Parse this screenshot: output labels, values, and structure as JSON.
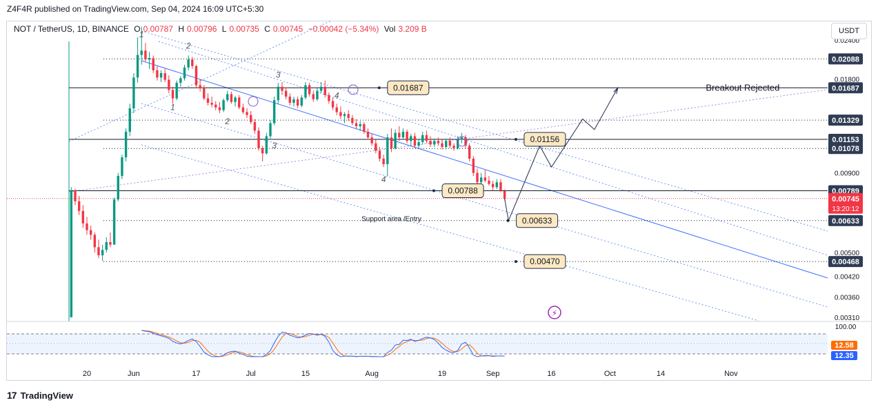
{
  "header": {
    "publisher_line": "Z4F4R published on TradingView.com, Sep 04, 2024 16:09 UTC+5:30"
  },
  "legend": {
    "symbol": "NOT / TetherUS, 1D, BINANCE",
    "open_label": "O",
    "open": "0.00787",
    "high_label": "H",
    "high": "0.00796",
    "low_label": "L",
    "low": "0.00735",
    "close_label": "C",
    "close": "0.00745",
    "change": "−0.00042 (−5.34%)",
    "vol_label": "Vol",
    "vol": "3.209 B"
  },
  "toolbar": {
    "currency": "USDT"
  },
  "footer": {
    "brand": "TradingView"
  },
  "colors": {
    "up": "#089981",
    "down": "#f23645",
    "channel": "#2962ff",
    "label_bg": "#fce8c3",
    "axis_label_bg": "#2f3c54",
    "stoch_k": "#2962ff",
    "stoch_d": "#ff6d00"
  },
  "chart_data": {
    "type": "candlestick",
    "symbol": "NOT / TetherUS",
    "interval": "1D",
    "exchange": "BINANCE",
    "y_scale": "log",
    "ylim": [
      0.0031,
      0.0245
    ],
    "y_ticks": [
      "0.02400",
      "0.02088",
      "0.01800",
      "0.01687",
      "0.01329",
      "0.01153",
      "0.01078",
      "0.00900",
      "0.00789",
      "0.00745",
      "0.00633",
      "0.00500",
      "0.00468",
      "0.00420",
      "0.00360",
      "0.00310"
    ],
    "x_ticks": [
      {
        "label": "20",
        "date": "2024-05-20"
      },
      {
        "label": "Jun",
        "date": "2024-06-01"
      },
      {
        "label": "17",
        "date": "2024-06-17"
      },
      {
        "label": "Jul",
        "date": "2024-07-01"
      },
      {
        "label": "15",
        "date": "2024-07-15"
      },
      {
        "label": "Aug",
        "date": "2024-08-01"
      },
      {
        "label": "19",
        "date": "2024-08-19"
      },
      {
        "label": "Sep",
        "date": "2024-09-01"
      },
      {
        "label": "16",
        "date": "2024-09-16"
      },
      {
        "label": "Oct",
        "date": "2024-10-01"
      },
      {
        "label": "14",
        "date": "2024-10-14"
      },
      {
        "label": "Nov",
        "date": "2024-11-01"
      }
    ],
    "candles": [
      [
        "2024-05-16",
        0.0031,
        0.0081,
        0.0031,
        0.0079
      ],
      [
        "2024-05-17",
        0.0079,
        0.008,
        0.0071,
        0.0073
      ],
      [
        "2024-05-18",
        0.0073,
        0.0076,
        0.0066,
        0.0068
      ],
      [
        "2024-05-19",
        0.0068,
        0.0071,
        0.006,
        0.0062
      ],
      [
        "2024-05-20",
        0.0062,
        0.0065,
        0.0057,
        0.0059
      ],
      [
        "2024-05-21",
        0.0059,
        0.0061,
        0.0055,
        0.0057
      ],
      [
        "2024-05-22",
        0.0057,
        0.0058,
        0.005,
        0.0052
      ],
      [
        "2024-05-23",
        0.0052,
        0.0055,
        0.0048,
        0.0049
      ],
      [
        "2024-05-24",
        0.0049,
        0.0053,
        0.0047,
        0.0051
      ],
      [
        "2024-05-25",
        0.0051,
        0.0056,
        0.005,
        0.0054
      ],
      [
        "2024-05-26",
        0.0054,
        0.0058,
        0.0052,
        0.0053
      ],
      [
        "2024-05-27",
        0.0053,
        0.0075,
        0.0053,
        0.0074
      ],
      [
        "2024-05-28",
        0.0074,
        0.009,
        0.0073,
        0.0088
      ],
      [
        "2024-05-29",
        0.0088,
        0.0103,
        0.0086,
        0.0101
      ],
      [
        "2024-05-30",
        0.0101,
        0.0125,
        0.0098,
        0.0122
      ],
      [
        "2024-05-31",
        0.0122,
        0.015,
        0.0118,
        0.0145
      ],
      [
        "2024-06-01",
        0.0145,
        0.0188,
        0.014,
        0.0182
      ],
      [
        "2024-06-02",
        0.0182,
        0.0245,
        0.0175,
        0.0215
      ],
      [
        "2024-06-03",
        0.0215,
        0.0265,
        0.02,
        0.0222
      ],
      [
        "2024-06-04",
        0.0222,
        0.0235,
        0.0205,
        0.0208
      ],
      [
        "2024-06-05",
        0.0208,
        0.022,
        0.0194,
        0.021
      ],
      [
        "2024-06-06",
        0.021,
        0.0214,
        0.0188,
        0.0192
      ],
      [
        "2024-06-07",
        0.0192,
        0.0198,
        0.0178,
        0.0182
      ],
      [
        "2024-06-08",
        0.0182,
        0.0192,
        0.0176,
        0.0188
      ],
      [
        "2024-06-09",
        0.0188,
        0.0194,
        0.0176,
        0.0179
      ],
      [
        "2024-06-10",
        0.0179,
        0.0185,
        0.0162,
        0.0166
      ],
      [
        "2024-06-11",
        0.0166,
        0.017,
        0.015,
        0.0156
      ],
      [
        "2024-06-12",
        0.0156,
        0.0178,
        0.0154,
        0.0175
      ],
      [
        "2024-06-13",
        0.0175,
        0.0184,
        0.017,
        0.0181
      ],
      [
        "2024-06-14",
        0.0181,
        0.02,
        0.0178,
        0.0196
      ],
      [
        "2024-06-15",
        0.0196,
        0.0214,
        0.0192,
        0.0208
      ],
      [
        "2024-06-16",
        0.0208,
        0.0212,
        0.0194,
        0.0198
      ],
      [
        "2024-06-17",
        0.0198,
        0.02,
        0.0168,
        0.0172
      ],
      [
        "2024-06-18",
        0.0172,
        0.018,
        0.0164,
        0.0168
      ],
      [
        "2024-06-19",
        0.0168,
        0.0172,
        0.0154,
        0.0156
      ],
      [
        "2024-06-20",
        0.0156,
        0.0162,
        0.0148,
        0.0151
      ],
      [
        "2024-06-21",
        0.0151,
        0.0158,
        0.0146,
        0.0149
      ],
      [
        "2024-06-22",
        0.0149,
        0.0153,
        0.0143,
        0.0146
      ],
      [
        "2024-06-23",
        0.0146,
        0.0152,
        0.014,
        0.0143
      ],
      [
        "2024-06-24",
        0.0143,
        0.0156,
        0.0141,
        0.0154
      ],
      [
        "2024-06-25",
        0.0154,
        0.0165,
        0.0152,
        0.0161
      ],
      [
        "2024-06-26",
        0.0161,
        0.0164,
        0.015,
        0.0152
      ],
      [
        "2024-06-27",
        0.0152,
        0.0159,
        0.0147,
        0.0157
      ],
      [
        "2024-06-28",
        0.0157,
        0.016,
        0.0144,
        0.0146
      ],
      [
        "2024-06-29",
        0.0146,
        0.015,
        0.0139,
        0.0141
      ],
      [
        "2024-06-30",
        0.0141,
        0.0145,
        0.0135,
        0.0138
      ],
      [
        "2024-07-01",
        0.0138,
        0.0142,
        0.0129,
        0.0131
      ],
      [
        "2024-07-02",
        0.0131,
        0.0134,
        0.012,
        0.0123
      ],
      [
        "2024-07-03",
        0.0123,
        0.0126,
        0.0106,
        0.0108
      ],
      [
        "2024-07-04",
        0.0108,
        0.011,
        0.0098,
        0.0104
      ],
      [
        "2024-07-05",
        0.0104,
        0.0121,
        0.0103,
        0.0118
      ],
      [
        "2024-07-06",
        0.0118,
        0.0133,
        0.0116,
        0.013
      ],
      [
        "2024-07-07",
        0.013,
        0.0158,
        0.0128,
        0.0154
      ],
      [
        "2024-07-08",
        0.0154,
        0.0175,
        0.015,
        0.017
      ],
      [
        "2024-07-09",
        0.017,
        0.0176,
        0.016,
        0.0165
      ],
      [
        "2024-07-10",
        0.0165,
        0.0169,
        0.0155,
        0.0158
      ],
      [
        "2024-07-11",
        0.0158,
        0.0162,
        0.0148,
        0.0151
      ],
      [
        "2024-07-12",
        0.0151,
        0.0158,
        0.0147,
        0.0155
      ],
      [
        "2024-07-13",
        0.0155,
        0.0158,
        0.0145,
        0.0148
      ],
      [
        "2024-07-14",
        0.0148,
        0.016,
        0.0146,
        0.0157
      ],
      [
        "2024-07-15",
        0.0157,
        0.0176,
        0.0155,
        0.0172
      ],
      [
        "2024-07-16",
        0.0172,
        0.0175,
        0.0158,
        0.0161
      ],
      [
        "2024-07-17",
        0.0161,
        0.0164,
        0.0152,
        0.0155
      ],
      [
        "2024-07-18",
        0.0155,
        0.0168,
        0.0153,
        0.0165
      ],
      [
        "2024-07-19",
        0.0165,
        0.0176,
        0.0162,
        0.017
      ],
      [
        "2024-07-20",
        0.017,
        0.0178,
        0.0157,
        0.016
      ],
      [
        "2024-07-21",
        0.016,
        0.0163,
        0.015,
        0.0153
      ],
      [
        "2024-07-22",
        0.0153,
        0.0157,
        0.0143,
        0.0146
      ],
      [
        "2024-07-23",
        0.0146,
        0.015,
        0.0138,
        0.0141
      ],
      [
        "2024-07-24",
        0.0141,
        0.0147,
        0.0134,
        0.0137
      ],
      [
        "2024-07-25",
        0.0137,
        0.0141,
        0.013,
        0.0139
      ],
      [
        "2024-07-26",
        0.0139,
        0.0143,
        0.0132,
        0.0135
      ],
      [
        "2024-07-27",
        0.0135,
        0.0138,
        0.0128,
        0.013
      ],
      [
        "2024-07-28",
        0.013,
        0.0134,
        0.0125,
        0.0127
      ],
      [
        "2024-07-29",
        0.0127,
        0.0132,
        0.0123,
        0.0129
      ],
      [
        "2024-07-30",
        0.0129,
        0.0131,
        0.012,
        0.0122
      ],
      [
        "2024-07-31",
        0.0122,
        0.0125,
        0.0115,
        0.0117
      ],
      [
        "2024-08-01",
        0.0117,
        0.012,
        0.011,
        0.0112
      ],
      [
        "2024-08-02",
        0.0112,
        0.0115,
        0.0104,
        0.0106
      ],
      [
        "2024-08-03",
        0.0106,
        0.0109,
        0.0098,
        0.01
      ],
      [
        "2024-08-04",
        0.01,
        0.0103,
        0.0094,
        0.0096
      ],
      [
        "2024-08-05",
        0.0096,
        0.012,
        0.0088,
        0.0117
      ],
      [
        "2024-08-06",
        0.0117,
        0.0125,
        0.0105,
        0.0108
      ],
      [
        "2024-08-07",
        0.0108,
        0.0124,
        0.0107,
        0.0121
      ],
      [
        "2024-08-08",
        0.0121,
        0.0127,
        0.0114,
        0.0117
      ],
      [
        "2024-08-09",
        0.0117,
        0.0125,
        0.0115,
        0.0122
      ],
      [
        "2024-08-10",
        0.0122,
        0.0124,
        0.0112,
        0.0114
      ],
      [
        "2024-08-11",
        0.0114,
        0.012,
        0.011,
        0.0118
      ],
      [
        "2024-08-12",
        0.0118,
        0.0121,
        0.0108,
        0.011
      ],
      [
        "2024-08-13",
        0.011,
        0.0115,
        0.0108,
        0.0113
      ],
      [
        "2024-08-14",
        0.0113,
        0.0122,
        0.0111,
        0.0119
      ],
      [
        "2024-08-15",
        0.0119,
        0.0123,
        0.0112,
        0.0114
      ],
      [
        "2024-08-16",
        0.0114,
        0.0118,
        0.0109,
        0.0111
      ],
      [
        "2024-08-17",
        0.0111,
        0.0116,
        0.0109,
        0.0114
      ],
      [
        "2024-08-18",
        0.0114,
        0.0117,
        0.011,
        0.0112
      ],
      [
        "2024-08-19",
        0.0112,
        0.0115,
        0.0107,
        0.0109
      ],
      [
        "2024-08-20",
        0.0109,
        0.0116,
        0.0107,
        0.0114
      ],
      [
        "2024-08-21",
        0.0114,
        0.0117,
        0.0108,
        0.011
      ],
      [
        "2024-08-22",
        0.011,
        0.0112,
        0.0106,
        0.0108
      ],
      [
        "2024-08-23",
        0.0108,
        0.0118,
        0.0107,
        0.0115
      ],
      [
        "2024-08-24",
        0.0115,
        0.0121,
        0.0112,
        0.0117
      ],
      [
        "2024-08-25",
        0.0117,
        0.0119,
        0.0108,
        0.011
      ],
      [
        "2024-08-26",
        0.011,
        0.0112,
        0.0098,
        0.01
      ],
      [
        "2024-08-27",
        0.01,
        0.0102,
        0.0088,
        0.009
      ],
      [
        "2024-08-28",
        0.009,
        0.0093,
        0.0082,
        0.0084
      ],
      [
        "2024-08-29",
        0.0084,
        0.009,
        0.0082,
        0.0087
      ],
      [
        "2024-08-30",
        0.0087,
        0.0092,
        0.0084,
        0.0085
      ],
      [
        "2024-08-31",
        0.0085,
        0.0088,
        0.0082,
        0.0083
      ],
      [
        "2024-09-01",
        0.0083,
        0.0085,
        0.0079,
        0.0081
      ],
      [
        "2024-09-02",
        0.0081,
        0.0086,
        0.008,
        0.0084
      ],
      [
        "2024-09-03",
        0.0084,
        0.0086,
        0.0078,
        0.0079
      ],
      [
        "2024-09-04",
        0.00787,
        0.00796,
        0.00735,
        0.00745
      ]
    ],
    "horizontal_levels": [
      {
        "price": 0.02088,
        "label": "0.02088",
        "style": "dotted"
      },
      {
        "price": 0.01687,
        "label": "0.01687",
        "style": "solid"
      },
      {
        "price": 0.01329,
        "label": "0.01329",
        "style": "dotted"
      },
      {
        "price": 0.01153,
        "label": "0.01153",
        "style": "solid"
      },
      {
        "price": 0.01078,
        "label": "0.01078",
        "style": "dotted"
      },
      {
        "price": 0.00789,
        "label": "0.00789",
        "style": "solid"
      },
      {
        "price": 0.00633,
        "label": "0.00633",
        "style": "dotted"
      },
      {
        "price": 0.00468,
        "label": "0.00468",
        "style": "dotted"
      }
    ],
    "current_price": {
      "value": "0.00745",
      "countdown": "13:20:12"
    },
    "price_callouts": [
      {
        "date": "2024-08-05",
        "price": 0.01687,
        "text": "0.01687"
      },
      {
        "date": "2024-09-09",
        "price": 0.01153,
        "text": "0.01156"
      },
      {
        "date": "2024-08-19",
        "price": 0.00789,
        "text": "0.00788"
      },
      {
        "date": "2024-09-07",
        "price": 0.00633,
        "text": "0.00633"
      },
      {
        "date": "2024-09-09",
        "price": 0.00468,
        "text": "0.00470"
      }
    ],
    "annotations": [
      {
        "text": "Breakout Rejected",
        "date": "2024-11-04",
        "price": 0.01687
      },
      {
        "text": "Support area /Entry",
        "date": "2024-08-06",
        "price": 0.00735
      }
    ],
    "wave_labels": [
      {
        "text": "1",
        "date": "2024-06-03",
        "price": 0.0245
      },
      {
        "text": "2",
        "date": "2024-06-15",
        "price": 0.0225
      },
      {
        "text": "3",
        "date": "2024-07-08",
        "price": 0.0182
      },
      {
        "text": "4",
        "date": "2024-07-23",
        "price": 0.0156
      },
      {
        "text": "1",
        "date": "2024-06-11",
        "price": 0.0143
      },
      {
        "text": "2",
        "date": "2024-06-25",
        "price": 0.0129
      },
      {
        "text": "3",
        "date": "2024-07-07",
        "price": 0.0108
      },
      {
        "text": "4",
        "date": "2024-08-04",
        "price": 0.0084
      }
    ],
    "projection_path": [
      [
        "2024-09-04",
        0.00745
      ],
      [
        "2024-09-05",
        0.00633
      ],
      [
        "2024-09-13",
        0.011
      ],
      [
        "2024-09-16",
        0.0094
      ],
      [
        "2024-09-24",
        0.0134
      ],
      [
        "2024-09-27",
        0.0124
      ],
      [
        "2024-10-03",
        0.01687
      ]
    ],
    "stochastic": {
      "upper_level": "100.00",
      "k": "12.35",
      "d": "12.58"
    }
  }
}
